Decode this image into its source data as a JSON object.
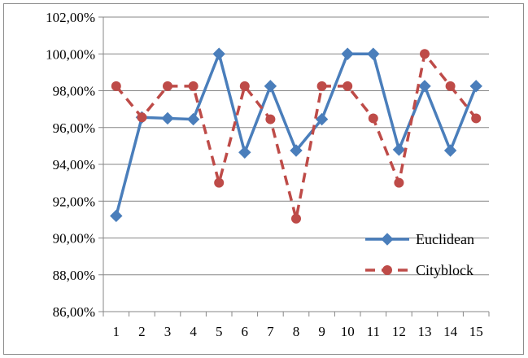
{
  "chart_data": {
    "type": "line",
    "title": "",
    "xlabel": "",
    "ylabel": "",
    "categories": [
      "1",
      "2",
      "3",
      "4",
      "5",
      "6",
      "7",
      "8",
      "9",
      "10",
      "11",
      "12",
      "13",
      "14",
      "15"
    ],
    "y_tick_labels": [
      "86,00%",
      "88,00%",
      "90,00%",
      "92,00%",
      "94,00%",
      "96,00%",
      "98,00%",
      "100,00%",
      "102,00%"
    ],
    "ylim": [
      86,
      102
    ],
    "y_step": 2,
    "grid": true,
    "legend_position": "right",
    "series": [
      {
        "name": "Euclidean",
        "color": "#4a7ebb",
        "line_style": "solid",
        "marker": "diamond",
        "values": [
          91.2,
          96.55,
          96.5,
          96.45,
          100.0,
          94.65,
          98.25,
          94.75,
          96.45,
          100.0,
          100.0,
          94.8,
          98.25,
          94.75,
          98.25
        ]
      },
      {
        "name": "Cityblock",
        "color": "#be4b48",
        "line_style": "dashed",
        "marker": "circle",
        "values": [
          98.25,
          96.55,
          98.25,
          98.25,
          93.0,
          98.25,
          96.45,
          91.05,
          98.25,
          98.25,
          96.5,
          93.0,
          100.0,
          98.25,
          96.5
        ]
      }
    ]
  }
}
